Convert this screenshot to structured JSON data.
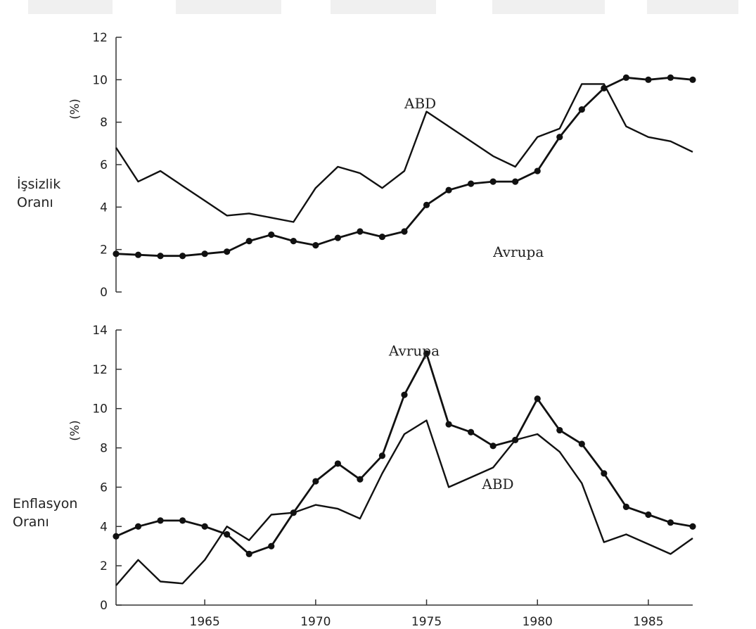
{
  "chart_data": [
    {
      "type": "line",
      "ylabel_unit": "(%)",
      "side_label": [
        "İşsizlik",
        "Oranı"
      ],
      "ylim": [
        0,
        12
      ],
      "yticks": [
        0,
        2,
        4,
        6,
        8,
        10,
        12
      ],
      "xlim": [
        1961,
        1987
      ],
      "grid": false,
      "series": [
        {
          "name": "ABD",
          "marker": "none",
          "points": [
            [
              1961,
              6.8
            ],
            [
              1962,
              5.2
            ],
            [
              1963,
              5.7
            ],
            [
              1964,
              5.0
            ],
            [
              1965,
              4.3
            ],
            [
              1966,
              3.6
            ],
            [
              1967,
              3.7
            ],
            [
              1968,
              3.5
            ],
            [
              1969,
              3.3
            ],
            [
              1970,
              4.9
            ],
            [
              1971,
              5.9
            ],
            [
              1972,
              5.6
            ],
            [
              1973,
              4.9
            ],
            [
              1974,
              5.7
            ],
            [
              1975,
              8.5
            ],
            [
              1976,
              7.8
            ],
            [
              1977,
              7.1
            ],
            [
              1978,
              6.4
            ],
            [
              1979,
              5.9
            ],
            [
              1980,
              7.3
            ],
            [
              1981,
              7.7
            ],
            [
              1982,
              9.8
            ],
            [
              1983,
              9.8
            ],
            [
              1984,
              7.8
            ],
            [
              1985,
              7.3
            ],
            [
              1986,
              7.1
            ],
            [
              1987,
              6.6
            ]
          ]
        },
        {
          "name": "Avrupa",
          "marker": "dot",
          "points": [
            [
              1961,
              1.8
            ],
            [
              1962,
              1.75
            ],
            [
              1963,
              1.7
            ],
            [
              1964,
              1.7
            ],
            [
              1965,
              1.8
            ],
            [
              1966,
              1.9
            ],
            [
              1967,
              2.4
            ],
            [
              1968,
              2.7
            ],
            [
              1969,
              2.4
            ],
            [
              1970,
              2.2
            ],
            [
              1971,
              2.55
            ],
            [
              1972,
              2.85
            ],
            [
              1973,
              2.6
            ],
            [
              1974,
              2.85
            ],
            [
              1975,
              4.1
            ],
            [
              1976,
              4.8
            ],
            [
              1977,
              5.1
            ],
            [
              1978,
              5.2
            ],
            [
              1979,
              5.2
            ],
            [
              1980,
              5.7
            ],
            [
              1981,
              7.3
            ],
            [
              1982,
              8.6
            ],
            [
              1983,
              9.6
            ],
            [
              1984,
              10.1
            ],
            [
              1985,
              10.0
            ],
            [
              1986,
              10.1
            ],
            [
              1987,
              10.0
            ]
          ]
        }
      ],
      "annotations": [
        {
          "text": "ABD",
          "x": 1974,
          "y": 8.65
        },
        {
          "text": "Avrupa",
          "x": 1978,
          "y": 1.65
        }
      ]
    },
    {
      "type": "line",
      "ylabel_unit": "(%)",
      "side_label": [
        "Enflasyon",
        "Oranı"
      ],
      "ylim": [
        0,
        14
      ],
      "yticks": [
        0,
        2,
        4,
        6,
        8,
        10,
        12,
        14
      ],
      "xlim": [
        1961,
        1987
      ],
      "xticks": [
        1965,
        1970,
        1975,
        1980,
        1985
      ],
      "grid": false,
      "series": [
        {
          "name": "ABD",
          "marker": "none",
          "points": [
            [
              1961,
              1.0
            ],
            [
              1962,
              2.3
            ],
            [
              1963,
              1.2
            ],
            [
              1964,
              1.1
            ],
            [
              1965,
              2.3
            ],
            [
              1966,
              4.0
            ],
            [
              1967,
              3.3
            ],
            [
              1968,
              4.6
            ],
            [
              1969,
              4.7
            ],
            [
              1970,
              5.1
            ],
            [
              1971,
              4.9
            ],
            [
              1972,
              4.4
            ],
            [
              1973,
              6.7
            ],
            [
              1974,
              8.7
            ],
            [
              1975,
              9.4
            ],
            [
              1976,
              6.0
            ],
            [
              1977,
              6.5
            ],
            [
              1978,
              7.0
            ],
            [
              1979,
              8.4
            ],
            [
              1980,
              8.7
            ],
            [
              1981,
              7.8
            ],
            [
              1982,
              6.2
            ],
            [
              1983,
              3.2
            ],
            [
              1984,
              3.6
            ],
            [
              1985,
              3.1
            ],
            [
              1986,
              2.6
            ],
            [
              1987,
              3.4
            ]
          ]
        },
        {
          "name": "Avrupa",
          "marker": "dot",
          "points": [
            [
              1961,
              3.5
            ],
            [
              1962,
              4.0
            ],
            [
              1963,
              4.3
            ],
            [
              1964,
              4.3
            ],
            [
              1965,
              4.0
            ],
            [
              1966,
              3.6
            ],
            [
              1967,
              2.6
            ],
            [
              1968,
              3.0
            ],
            [
              1969,
              4.7
            ],
            [
              1970,
              6.3
            ],
            [
              1971,
              7.2
            ],
            [
              1972,
              6.4
            ],
            [
              1973,
              7.6
            ],
            [
              1974,
              10.7
            ],
            [
              1975,
              12.8
            ],
            [
              1976,
              9.2
            ],
            [
              1977,
              8.8
            ],
            [
              1978,
              8.1
            ],
            [
              1979,
              8.4
            ],
            [
              1980,
              10.5
            ],
            [
              1981,
              8.9
            ],
            [
              1982,
              8.2
            ],
            [
              1983,
              6.7
            ],
            [
              1984,
              5.0
            ],
            [
              1985,
              4.6
            ],
            [
              1986,
              4.2
            ],
            [
              1987,
              4.0
            ]
          ]
        }
      ],
      "annotations": [
        {
          "text": "Avrupa",
          "x": 1973.3,
          "y": 12.7
        },
        {
          "text": "ABD",
          "x": 1977.5,
          "y": 5.9
        }
      ]
    }
  ],
  "colors": {
    "line": "#111111",
    "axis": "#333333",
    "text": "#222222",
    "background": "#ffffff",
    "decoration": "#f0f0f0"
  }
}
